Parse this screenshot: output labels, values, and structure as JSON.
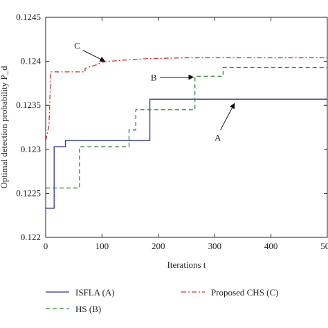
{
  "chart_data": {
    "type": "line",
    "title": "",
    "xlabel": "Iterations t",
    "ylabel": "Optimal detection probability P_d",
    "xlim": [
      0,
      500
    ],
    "ylim": [
      0.122,
      0.1245
    ],
    "x_ticks": [
      "0",
      "100",
      "200",
      "300",
      "400",
      "500"
    ],
    "y_ticks": [
      "0.122",
      "0.1225",
      "0.123",
      "0.1235",
      "0.124",
      "0.1245"
    ],
    "grid": false,
    "legend_position": "bottom-outside",
    "series": [
      {
        "name": "ISFLA (A)",
        "color": "#2b2f9e",
        "dash": "solid",
        "x": [
          0,
          15,
          15,
          35,
          35,
          185,
          185,
          500
        ],
        "y": [
          0.12233,
          0.12233,
          0.12303,
          0.12303,
          0.1231,
          0.1231,
          0.12357,
          0.12357
        ]
      },
      {
        "name": "HS (B)",
        "color": "#2e8b2e",
        "dash": "dashed",
        "x": [
          0,
          60,
          60,
          148,
          148,
          160,
          160,
          265,
          265,
          315,
          315,
          500
        ],
        "y": [
          0.12256,
          0.12256,
          0.12303,
          0.12303,
          0.12322,
          0.12322,
          0.12345,
          0.12345,
          0.12383,
          0.12383,
          0.12393,
          0.12393
        ]
      },
      {
        "name": "Proposed CHS (C)",
        "color": "#d2312a",
        "dash": "dashdot",
        "x": [
          0,
          3,
          6,
          9,
          9,
          70,
          70,
          90,
          100,
          130,
          180,
          250,
          500
        ],
        "y": [
          0.1231,
          0.12318,
          0.12328,
          0.12387,
          0.12388,
          0.12388,
          0.12392,
          0.12396,
          0.12399,
          0.12401,
          0.12403,
          0.12404,
          0.12404
        ]
      }
    ],
    "annotations": [
      {
        "text": "C",
        "target_x": 105,
        "target_y": 0.124
      },
      {
        "text": "B",
        "target_x": 262,
        "target_y": 0.12382
      },
      {
        "text": "A",
        "target_x": 335,
        "target_y": 0.12352
      }
    ]
  }
}
